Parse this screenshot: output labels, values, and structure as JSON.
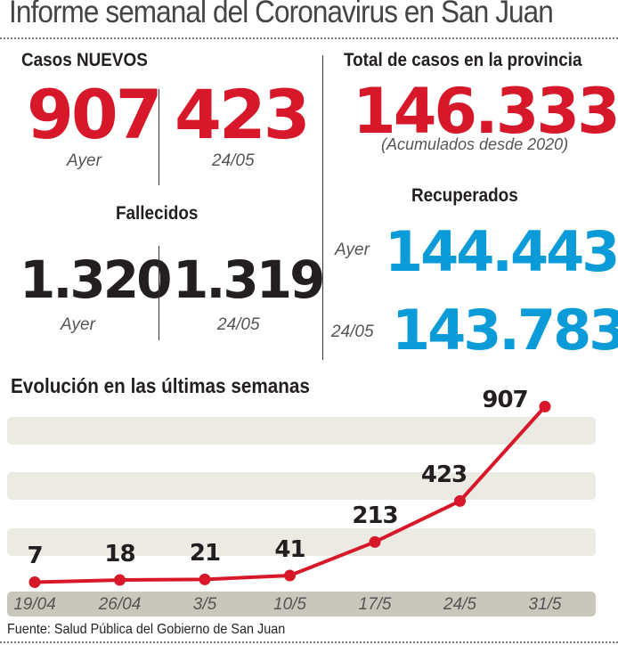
{
  "header": {
    "title": "Informe semanal del Coronavirus en San Juan"
  },
  "nuevos": {
    "heading": "Casos NUEVOS",
    "ayer_value": "907",
    "ayer_label": "Ayer",
    "prev_value": "423",
    "prev_label": "24/05"
  },
  "fallecidos": {
    "heading": "Fallecidos",
    "ayer_value": "1.320",
    "ayer_label": "Ayer",
    "prev_value": "1.319",
    "prev_label": "24/05"
  },
  "total": {
    "heading": "Total de casos en la provincia",
    "value": "146.333",
    "note": "(Acumulados desde 2020)"
  },
  "recuperados": {
    "heading": "Recuperados",
    "ayer_label": "Ayer",
    "ayer_value": "144.443",
    "prev_label": "24/05",
    "prev_value": "143.783"
  },
  "colors": {
    "red": "#d7182a",
    "blue": "#0a9bd8",
    "band": "#ebebe3",
    "axis_band": "#c9c7bb"
  },
  "chart_data": {
    "type": "line",
    "title": "Evolución en las últimas semanas",
    "categories": [
      "19/04",
      "26/04",
      "3/5",
      "10/5",
      "17/5",
      "24/5",
      "31/5"
    ],
    "values": [
      7,
      18,
      21,
      41,
      213,
      423,
      907
    ],
    "data_labels": [
      "7",
      "18",
      "21",
      "41",
      "213",
      "423",
      "907"
    ],
    "grid": "horizontal bands",
    "color": "#d7182a"
  },
  "footer": {
    "source": "Fuente: Salud Pública del Gobierno de San Juan"
  }
}
